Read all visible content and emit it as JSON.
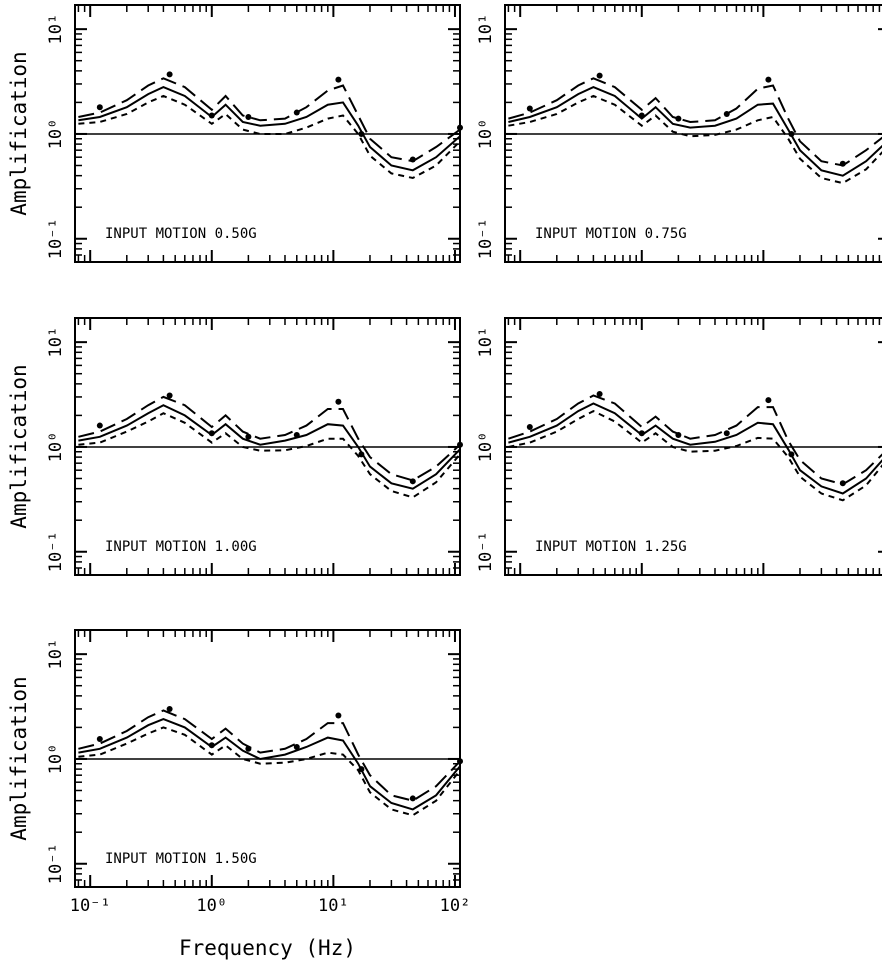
{
  "chart_data": [
    {
      "type": "line",
      "ylabel": "Amplification",
      "annotation": "INPUT MOTION 0.50G",
      "xlog": true,
      "ylog": true,
      "xlim": [
        0.075,
        110
      ],
      "ylim": [
        0.06,
        17
      ],
      "hline": 1,
      "xtick_labels": false,
      "xticks": [
        0.1,
        1,
        10,
        100
      ],
      "yticks": [
        {
          "value": 0.1,
          "label": "10⁻¹"
        },
        {
          "value": 1,
          "label": "10⁰"
        },
        {
          "value": 10,
          "label": "10¹"
        }
      ],
      "xminor": [
        0.08,
        0.09,
        0.2,
        0.3,
        0.4,
        0.5,
        0.6,
        0.7,
        0.8,
        0.9,
        2,
        3,
        4,
        5,
        6,
        7,
        8,
        9,
        20,
        30,
        40,
        50,
        60,
        70,
        80,
        90
      ],
      "yminor": [
        0.07,
        0.08,
        0.09,
        0.2,
        0.3,
        0.4,
        0.5,
        0.6,
        0.7,
        0.8,
        0.9,
        2,
        3,
        4,
        5,
        6,
        7,
        8,
        9
      ],
      "x": [
        0.08,
        0.12,
        0.2,
        0.3,
        0.4,
        0.6,
        1,
        1.3,
        1.8,
        2.5,
        4,
        6,
        9,
        12,
        16,
        20,
        30,
        45,
        70,
        110
      ],
      "series": [
        {
          "color": "#000000",
          "dash": "solid",
          "values": [
            1.35,
            1.45,
            1.8,
            2.4,
            2.8,
            2.3,
            1.45,
            1.9,
            1.3,
            1.2,
            1.25,
            1.45,
            1.9,
            2.0,
            1.2,
            0.75,
            0.5,
            0.45,
            0.6,
            0.95
          ]
        },
        {
          "color": "#000000",
          "dash": "long",
          "values": [
            1.45,
            1.6,
            2.1,
            2.9,
            3.4,
            2.8,
            1.7,
            2.3,
            1.5,
            1.35,
            1.4,
            1.8,
            2.6,
            2.9,
            1.5,
            0.9,
            0.6,
            0.55,
            0.75,
            1.1
          ]
        },
        {
          "color": "#000000",
          "dash": "short",
          "values": [
            1.25,
            1.3,
            1.55,
            2.0,
            2.3,
            1.9,
            1.25,
            1.55,
            1.1,
            1.0,
            1.0,
            1.15,
            1.4,
            1.5,
            1.0,
            0.62,
            0.42,
            0.38,
            0.5,
            0.85
          ]
        }
      ],
      "points": {
        "x": [
          0.12,
          0.45,
          1,
          2,
          5,
          11,
          17,
          45,
          110
        ],
        "values": [
          1.8,
          3.7,
          1.5,
          1.45,
          1.6,
          3.3,
          1.0,
          0.57,
          1.15
        ]
      }
    },
    {
      "type": "line",
      "annotation": "INPUT MOTION 0.75G",
      "xlog": true,
      "ylog": true,
      "xlim": [
        0.075,
        110
      ],
      "ylim": [
        0.06,
        17
      ],
      "hline": 1,
      "xtick_labels": false,
      "xticks": [
        0.1,
        1,
        10,
        100
      ],
      "yticks": [
        {
          "value": 0.1,
          "label": "10⁻¹"
        },
        {
          "value": 1,
          "label": "10⁰"
        },
        {
          "value": 10,
          "label": "10¹"
        }
      ],
      "xminor": [
        0.08,
        0.09,
        0.2,
        0.3,
        0.4,
        0.5,
        0.6,
        0.7,
        0.8,
        0.9,
        2,
        3,
        4,
        5,
        6,
        7,
        8,
        9,
        20,
        30,
        40,
        50,
        60,
        70,
        80,
        90
      ],
      "yminor": [
        0.07,
        0.08,
        0.09,
        0.2,
        0.3,
        0.4,
        0.5,
        0.6,
        0.7,
        0.8,
        0.9,
        2,
        3,
        4,
        5,
        6,
        7,
        8,
        9
      ],
      "x": [
        0.08,
        0.12,
        0.2,
        0.3,
        0.4,
        0.6,
        1,
        1.3,
        1.8,
        2.5,
        4,
        6,
        9,
        12,
        16,
        20,
        30,
        45,
        70,
        110
      ],
      "series": [
        {
          "color": "#000000",
          "dash": "solid",
          "values": [
            1.3,
            1.45,
            1.8,
            2.4,
            2.8,
            2.3,
            1.4,
            1.8,
            1.25,
            1.15,
            1.2,
            1.4,
            1.9,
            1.95,
            1.1,
            0.7,
            0.45,
            0.4,
            0.55,
            0.9
          ]
        },
        {
          "color": "#000000",
          "dash": "long",
          "values": [
            1.4,
            1.6,
            2.1,
            2.9,
            3.4,
            2.8,
            1.7,
            2.2,
            1.45,
            1.3,
            1.35,
            1.75,
            2.7,
            2.9,
            1.4,
            0.85,
            0.55,
            0.5,
            0.7,
            1.05
          ]
        },
        {
          "color": "#000000",
          "dash": "short",
          "values": [
            1.2,
            1.3,
            1.55,
            2.0,
            2.3,
            1.9,
            1.2,
            1.5,
            1.05,
            0.95,
            0.98,
            1.1,
            1.35,
            1.45,
            0.9,
            0.58,
            0.38,
            0.34,
            0.46,
            0.8
          ]
        }
      ],
      "points": {
        "x": [
          0.12,
          0.45,
          1,
          2,
          5,
          11,
          17,
          45,
          110
        ],
        "values": [
          1.75,
          3.6,
          1.5,
          1.4,
          1.55,
          3.3,
          1.0,
          0.52,
          1.1
        ]
      }
    },
    {
      "type": "line",
      "ylabel": "Amplification",
      "annotation": "INPUT MOTION 1.00G",
      "xlog": true,
      "ylog": true,
      "xlim": [
        0.075,
        110
      ],
      "ylim": [
        0.06,
        17
      ],
      "hline": 1,
      "xtick_labels": false,
      "xticks": [
        0.1,
        1,
        10,
        100
      ],
      "yticks": [
        {
          "value": 0.1,
          "label": "10⁻¹"
        },
        {
          "value": 1,
          "label": "10⁰"
        },
        {
          "value": 10,
          "label": "10¹"
        }
      ],
      "xminor": [
        0.08,
        0.09,
        0.2,
        0.3,
        0.4,
        0.5,
        0.6,
        0.7,
        0.8,
        0.9,
        2,
        3,
        4,
        5,
        6,
        7,
        8,
        9,
        20,
        30,
        40,
        50,
        60,
        70,
        80,
        90
      ],
      "yminor": [
        0.07,
        0.08,
        0.09,
        0.2,
        0.3,
        0.4,
        0.5,
        0.6,
        0.7,
        0.8,
        0.9,
        2,
        3,
        4,
        5,
        6,
        7,
        8,
        9
      ],
      "x": [
        0.08,
        0.12,
        0.2,
        0.3,
        0.4,
        0.6,
        1,
        1.3,
        1.8,
        2.5,
        4,
        6,
        9,
        12,
        16,
        20,
        30,
        45,
        70,
        110
      ],
      "series": [
        {
          "color": "#000000",
          "dash": "solid",
          "values": [
            1.15,
            1.25,
            1.6,
            2.1,
            2.5,
            2.0,
            1.3,
            1.65,
            1.2,
            1.05,
            1.15,
            1.3,
            1.65,
            1.6,
            1.0,
            0.65,
            0.45,
            0.4,
            0.55,
            0.95
          ]
        },
        {
          "color": "#000000",
          "dash": "long",
          "values": [
            1.25,
            1.4,
            1.85,
            2.5,
            3.0,
            2.5,
            1.55,
            2.0,
            1.4,
            1.2,
            1.3,
            1.6,
            2.3,
            2.3,
            1.2,
            0.8,
            0.55,
            0.48,
            0.65,
            1.05
          ]
        },
        {
          "color": "#000000",
          "dash": "short",
          "values": [
            1.05,
            1.1,
            1.4,
            1.75,
            2.1,
            1.7,
            1.1,
            1.35,
            1.0,
            0.92,
            0.93,
            1.02,
            1.2,
            1.2,
            0.82,
            0.55,
            0.38,
            0.33,
            0.46,
            0.85
          ]
        }
      ],
      "points": {
        "x": [
          0.12,
          0.45,
          1,
          2,
          5,
          11,
          17,
          45,
          110
        ],
        "values": [
          1.6,
          3.1,
          1.35,
          1.25,
          1.3,
          2.7,
          0.85,
          0.47,
          1.05
        ]
      }
    },
    {
      "type": "line",
      "annotation": "INPUT MOTION 1.25G",
      "xlog": true,
      "ylog": true,
      "xlim": [
        0.075,
        110
      ],
      "ylim": [
        0.06,
        17
      ],
      "hline": 1,
      "xtick_labels": false,
      "xticks": [
        0.1,
        1,
        10,
        100
      ],
      "yticks": [
        {
          "value": 0.1,
          "label": "10⁻¹"
        },
        {
          "value": 1,
          "label": "10⁰"
        },
        {
          "value": 10,
          "label": "10¹"
        }
      ],
      "xminor": [
        0.08,
        0.09,
        0.2,
        0.3,
        0.4,
        0.5,
        0.6,
        0.7,
        0.8,
        0.9,
        2,
        3,
        4,
        5,
        6,
        7,
        8,
        9,
        20,
        30,
        40,
        50,
        60,
        70,
        80,
        90
      ],
      "yminor": [
        0.07,
        0.08,
        0.09,
        0.2,
        0.3,
        0.4,
        0.5,
        0.6,
        0.7,
        0.8,
        0.9,
        2,
        3,
        4,
        5,
        6,
        7,
        8,
        9
      ],
      "x": [
        0.08,
        0.12,
        0.2,
        0.3,
        0.4,
        0.6,
        1,
        1.3,
        1.8,
        2.5,
        4,
        6,
        9,
        12,
        16,
        20,
        30,
        45,
        70,
        110
      ],
      "series": [
        {
          "color": "#000000",
          "dash": "solid",
          "values": [
            1.1,
            1.25,
            1.6,
            2.2,
            2.6,
            2.1,
            1.3,
            1.6,
            1.2,
            1.05,
            1.12,
            1.3,
            1.7,
            1.65,
            0.95,
            0.6,
            0.42,
            0.36,
            0.5,
            0.9
          ]
        },
        {
          "color": "#000000",
          "dash": "long",
          "values": [
            1.2,
            1.4,
            1.85,
            2.6,
            3.1,
            2.6,
            1.55,
            1.95,
            1.4,
            1.2,
            1.3,
            1.6,
            2.4,
            2.4,
            1.15,
            0.75,
            0.5,
            0.44,
            0.6,
            1.0
          ]
        },
        {
          "color": "#000000",
          "dash": "short",
          "values": [
            1.0,
            1.1,
            1.4,
            1.85,
            2.2,
            1.75,
            1.1,
            1.35,
            1.0,
            0.9,
            0.92,
            1.02,
            1.22,
            1.2,
            0.8,
            0.52,
            0.36,
            0.31,
            0.43,
            0.82
          ]
        }
      ],
      "points": {
        "x": [
          0.12,
          0.45,
          1,
          2,
          5,
          11,
          17,
          45,
          110
        ],
        "values": [
          1.55,
          3.2,
          1.35,
          1.3,
          1.35,
          2.8,
          0.85,
          0.45,
          1.0
        ]
      }
    },
    {
      "type": "line",
      "ylabel": "Amplification",
      "xlabel": "Frequency (Hz)",
      "annotation": "INPUT MOTION 1.50G",
      "xlog": true,
      "ylog": true,
      "xlim": [
        0.075,
        110
      ],
      "ylim": [
        0.06,
        17
      ],
      "hline": 1,
      "xtick_labels": true,
      "xticks": [
        {
          "value": 0.1,
          "label": "10⁻¹"
        },
        {
          "value": 1,
          "label": "10⁰"
        },
        {
          "value": 10,
          "label": "10¹"
        },
        {
          "value": 100,
          "label": "10²"
        }
      ],
      "yticks": [
        {
          "value": 0.1,
          "label": "10⁻¹"
        },
        {
          "value": 1,
          "label": "10⁰"
        },
        {
          "value": 10,
          "label": "10¹"
        }
      ],
      "xminor": [
        0.08,
        0.09,
        0.2,
        0.3,
        0.4,
        0.5,
        0.6,
        0.7,
        0.8,
        0.9,
        2,
        3,
        4,
        5,
        6,
        7,
        8,
        9,
        20,
        30,
        40,
        50,
        60,
        70,
        80,
        90
      ],
      "yminor": [
        0.07,
        0.08,
        0.09,
        0.2,
        0.3,
        0.4,
        0.5,
        0.6,
        0.7,
        0.8,
        0.9,
        2,
        3,
        4,
        5,
        6,
        7,
        8,
        9
      ],
      "x": [
        0.08,
        0.12,
        0.2,
        0.3,
        0.4,
        0.6,
        1,
        1.3,
        1.8,
        2.5,
        4,
        6,
        9,
        12,
        16,
        20,
        30,
        45,
        70,
        110
      ],
      "series": [
        {
          "color": "#000000",
          "dash": "solid",
          "values": [
            1.15,
            1.25,
            1.6,
            2.1,
            2.4,
            2.0,
            1.3,
            1.6,
            1.2,
            1.0,
            1.1,
            1.3,
            1.6,
            1.5,
            0.9,
            0.55,
            0.38,
            0.33,
            0.45,
            0.85
          ]
        },
        {
          "color": "#000000",
          "dash": "long",
          "values": [
            1.25,
            1.4,
            1.85,
            2.5,
            2.9,
            2.4,
            1.55,
            1.95,
            1.4,
            1.15,
            1.25,
            1.55,
            2.2,
            2.2,
            1.1,
            0.7,
            0.45,
            0.4,
            0.55,
            0.95
          ]
        },
        {
          "color": "#000000",
          "dash": "short",
          "values": [
            1.05,
            1.1,
            1.4,
            1.75,
            2.0,
            1.7,
            1.1,
            1.35,
            1.0,
            0.9,
            0.92,
            1.0,
            1.15,
            1.1,
            0.78,
            0.48,
            0.33,
            0.29,
            0.4,
            0.78
          ]
        }
      ],
      "points": {
        "x": [
          0.12,
          0.45,
          1,
          2,
          5,
          11,
          17,
          45,
          110
        ],
        "values": [
          1.55,
          3.0,
          1.35,
          1.25,
          1.3,
          2.6,
          0.8,
          0.42,
          0.95
        ]
      }
    }
  ]
}
